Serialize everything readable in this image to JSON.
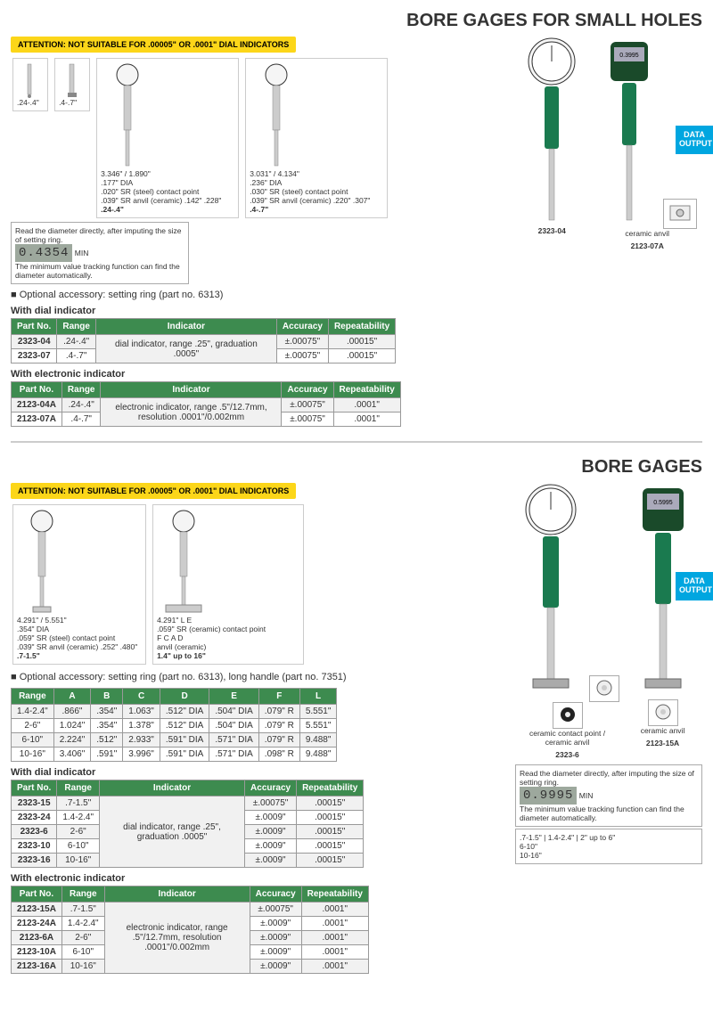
{
  "section1": {
    "title": "BORE GAGES FOR SMALL HOLES",
    "attention": "ATTENTION: NOT SUITABLE FOR .00005\" OR .0001\" DIAL INDICATORS",
    "optional": "Optional accessory: setting ring (part no. 6313)",
    "probe_labels": [
      ".24-.4\"",
      ".4-.7\""
    ],
    "lcd_box": {
      "text1": "Read the diameter directly, after imputing the size of setting ring.",
      "lcd": "0.4354",
      "min": "MIN",
      "text2": "The minimum value tracking function can find the diameter automatically."
    },
    "diagram_a": {
      "h1": "3.346\"",
      "h2": "1.890\"",
      "d1": ".177\" DIA",
      "sr1": ".020\" SR (steel) contact point",
      "sr2": ".039\" SR anvil (ceramic)",
      "w": ".142\"",
      "w2": ".228\"",
      "label": ".24-.4\""
    },
    "diagram_b": {
      "h1": "3.031\"",
      "h2": "4.134\"",
      "d1": ".236\" DIA",
      "sr1": ".030\" SR (steel) contact point",
      "sr2": ".039\" SR anvil (ceramic)",
      "w": ".220\"",
      "w2": ".307\"",
      "label": ".4-.7\""
    },
    "gage1": "2323-04",
    "gage2": "2123-07A",
    "anvil_label": "ceramic anvil",
    "data_output": "DATA OUTPUT",
    "table_dial": {
      "title": "With dial indicator",
      "headers": [
        "Part No.",
        "Range",
        "Indicator",
        "Accuracy",
        "Repeatability"
      ],
      "indicator": "dial indicator, range .25\", graduation .0005\"",
      "rows": [
        [
          "2323-04",
          ".24-.4\"",
          "±.00075\"",
          ".00015\""
        ],
        [
          "2323-07",
          ".4-.7\"",
          "±.00075\"",
          ".00015\""
        ]
      ]
    },
    "table_elec": {
      "title": "With electronic indicator",
      "headers": [
        "Part No.",
        "Range",
        "Indicator",
        "Accuracy",
        "Repeatability"
      ],
      "indicator": "electronic indicator, range .5\"/12.7mm, resolution .0001\"/0.002mm",
      "rows": [
        [
          "2123-04A",
          ".24-.4\"",
          "±.00075\"",
          ".0001\""
        ],
        [
          "2123-07A",
          ".4-.7\"",
          "±.00075\"",
          ".0001\""
        ]
      ]
    }
  },
  "section2": {
    "title": "BORE GAGES",
    "attention": "ATTENTION: NOT SUITABLE FOR .00005\" OR .0001\" DIAL INDICATORS",
    "optional": "Optional accessory: setting ring (part no. 6313), long handle (part no. 7351)",
    "diagram_a": {
      "h1": "4.291\"",
      "h2": "5.551\"",
      "d1": ".354\" DIA",
      "sr1": ".059\" SR (steel) contact point",
      "sr2": ".039\" SR anvil (ceramic)",
      "w": ".252\"",
      "w2": ".480\"",
      "label": ".7-1.5\""
    },
    "diagram_b": {
      "h1": "4.291\"",
      "l": "L",
      "e": "E",
      "f": "F",
      "c": "C",
      "a": "A",
      "d": "D",
      "sr1": ".059\" SR (ceramic) contact point",
      "sr2": "anvil (ceramic)",
      "label": "1.4\" up to 16\""
    },
    "gage1": "2323-6",
    "gage2": "2123-15A",
    "cp_label": "ceramic contact point",
    "anvil_label": "ceramic anvil",
    "data_output": "DATA OUTPUT",
    "lcd_box": {
      "text1": "Read the diameter directly, after imputing the size of setting ring.",
      "lcd": "0.9995",
      "min": "MIN",
      "text2": "The minimum value tracking function can find the diameter automatically."
    },
    "probe_labels": [
      ".7-1.5\"",
      "1.4-2.4\"",
      "2\" up to 6\"",
      "6-10\"",
      "10-16\""
    ],
    "dim_table": {
      "headers": [
        "Range",
        "A",
        "B",
        "C",
        "D",
        "E",
        "F",
        "L"
      ],
      "rows": [
        [
          "1.4-2.4\"",
          ".866\"",
          ".354\"",
          "1.063\"",
          ".512\" DIA",
          ".504\" DIA",
          ".079\" R",
          "5.551\""
        ],
        [
          "2-6\"",
          "1.024\"",
          ".354\"",
          "1.378\"",
          ".512\" DIA",
          ".504\" DIA",
          ".079\" R",
          "5.551\""
        ],
        [
          "6-10\"",
          "2.224\"",
          ".512\"",
          "2.933\"",
          ".591\" DIA",
          ".571\" DIA",
          ".079\" R",
          "9.488\""
        ],
        [
          "10-16\"",
          "3.406\"",
          ".591\"",
          "3.996\"",
          ".591\" DIA",
          ".571\" DIA",
          ".098\" R",
          "9.488\""
        ]
      ]
    },
    "table_dial": {
      "title": "With dial indicator",
      "headers": [
        "Part No.",
        "Range",
        "Indicator",
        "Accuracy",
        "Repeatability"
      ],
      "indicator": "dial indicator, range .25\", graduation .0005\"",
      "rows": [
        [
          "2323-15",
          ".7-1.5\"",
          "±.00075\"",
          ".00015\""
        ],
        [
          "2323-24",
          "1.4-2.4\"",
          "±.0009\"",
          ".00015\""
        ],
        [
          "2323-6",
          "2-6\"",
          "±.0009\"",
          ".00015\""
        ],
        [
          "2323-10",
          "6-10\"",
          "±.0009\"",
          ".00015\""
        ],
        [
          "2323-16",
          "10-16\"",
          "±.0009\"",
          ".00015\""
        ]
      ]
    },
    "table_elec": {
      "title": "With electronic indicator",
      "headers": [
        "Part No.",
        "Range",
        "Indicator",
        "Accuracy",
        "Repeatability"
      ],
      "indicator": "electronic indicator, range .5\"/12.7mm, resolution .0001\"/0.002mm",
      "rows": [
        [
          "2123-15A",
          ".7-1.5\"",
          "±.00075\"",
          ".0001\""
        ],
        [
          "2123-24A",
          "1.4-2.4\"",
          "±.0009\"",
          ".0001\""
        ],
        [
          "2123-6A",
          "2-6\"",
          "±.0009\"",
          ".0001\""
        ],
        [
          "2123-10A",
          "6-10\"",
          "±.0009\"",
          ".0001\""
        ],
        [
          "2123-16A",
          "10-16\"",
          "±.0009\"",
          ".0001\""
        ]
      ]
    }
  }
}
